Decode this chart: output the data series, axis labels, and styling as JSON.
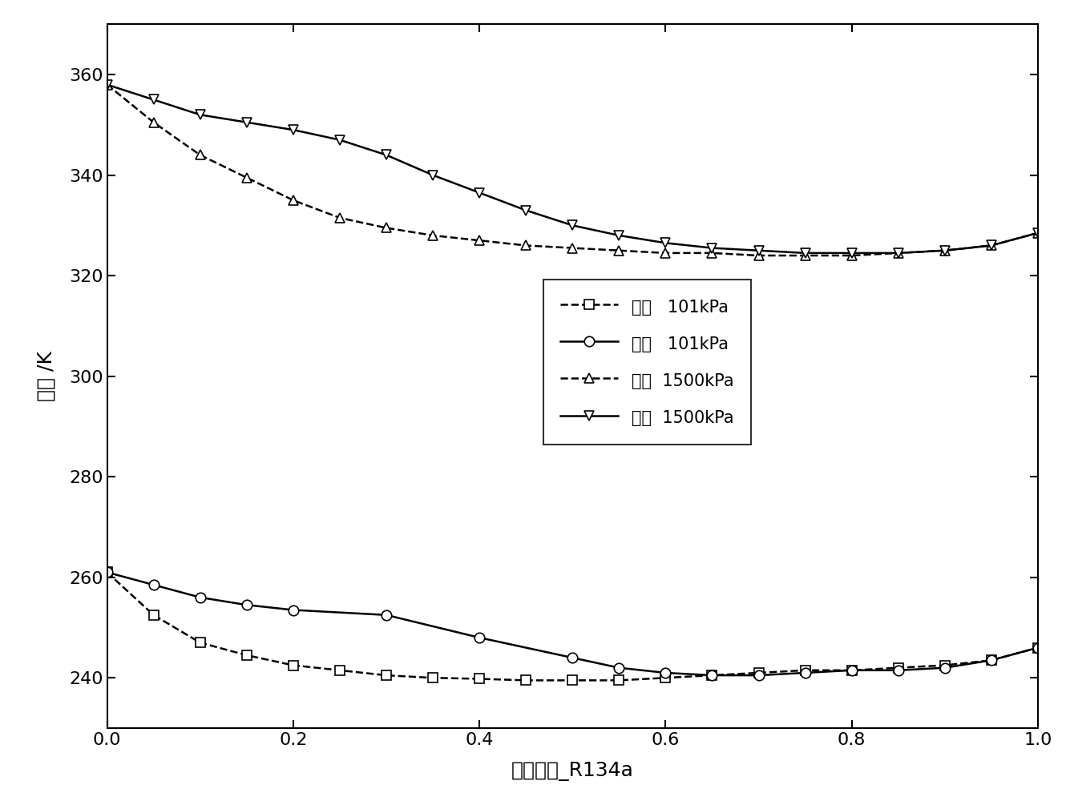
{
  "title": "",
  "xlabel": "摩尔分数_R134a",
  "ylabel": "温度 /K",
  "xlim": [
    0.0,
    1.0
  ],
  "ylim": [
    230,
    370
  ],
  "yticks": [
    240,
    260,
    280,
    300,
    320,
    340,
    360
  ],
  "xticks": [
    0.0,
    0.2,
    0.4,
    0.6,
    0.8,
    1.0
  ],
  "bubble_101_x": [
    0.0,
    0.05,
    0.1,
    0.15,
    0.2,
    0.25,
    0.3,
    0.35,
    0.4,
    0.45,
    0.5,
    0.55,
    0.6,
    0.65,
    0.7,
    0.75,
    0.8,
    0.85,
    0.9,
    0.95,
    1.0
  ],
  "bubble_101_y": [
    261.0,
    252.5,
    247.0,
    244.5,
    242.5,
    241.5,
    240.5,
    240.0,
    239.8,
    239.5,
    239.5,
    239.5,
    240.0,
    240.5,
    241.0,
    241.5,
    241.5,
    242.0,
    242.5,
    243.5,
    246.0
  ],
  "dew_101_x": [
    0.0,
    0.05,
    0.1,
    0.15,
    0.2,
    0.3,
    0.4,
    0.5,
    0.55,
    0.6,
    0.65,
    0.7,
    0.75,
    0.8,
    0.85,
    0.9,
    0.95,
    1.0
  ],
  "dew_101_y": [
    261.0,
    258.5,
    256.0,
    254.5,
    253.5,
    252.5,
    248.0,
    244.0,
    242.0,
    241.0,
    240.5,
    240.5,
    241.0,
    241.5,
    241.5,
    242.0,
    243.5,
    246.0
  ],
  "bubble_1500_x": [
    0.0,
    0.05,
    0.1,
    0.15,
    0.2,
    0.25,
    0.3,
    0.35,
    0.4,
    0.45,
    0.5,
    0.55,
    0.6,
    0.65,
    0.7,
    0.75,
    0.8,
    0.85,
    0.9,
    0.95,
    1.0
  ],
  "bubble_1500_y": [
    358.0,
    350.5,
    344.0,
    339.5,
    335.0,
    331.5,
    329.5,
    328.0,
    327.0,
    326.0,
    325.5,
    325.0,
    324.5,
    324.5,
    324.0,
    324.0,
    324.0,
    324.5,
    325.0,
    326.0,
    328.5
  ],
  "dew_1500_x": [
    0.0,
    0.05,
    0.1,
    0.15,
    0.2,
    0.25,
    0.3,
    0.35,
    0.4,
    0.45,
    0.5,
    0.55,
    0.6,
    0.65,
    0.7,
    0.75,
    0.8,
    0.85,
    0.9,
    0.95,
    1.0
  ],
  "dew_1500_y": [
    358.0,
    355.0,
    352.0,
    350.5,
    349.0,
    347.0,
    344.0,
    340.0,
    336.5,
    333.0,
    330.0,
    328.0,
    326.5,
    325.5,
    325.0,
    324.5,
    324.5,
    324.5,
    325.0,
    326.0,
    328.5
  ],
  "legend_label_bubble_101": "泡点   101kPa",
  "legend_label_dew_101": "露点   101kPa",
  "legend_label_bubble_1500": "泡点  1500kPa",
  "legend_label_dew_1500": "露点  1500kPa",
  "line_color": "#000000",
  "bg_color": "#ffffff",
  "legend_fontsize": 15,
  "axis_fontsize": 18,
  "tick_fontsize": 16,
  "marker_size": 9,
  "line_width": 1.8
}
